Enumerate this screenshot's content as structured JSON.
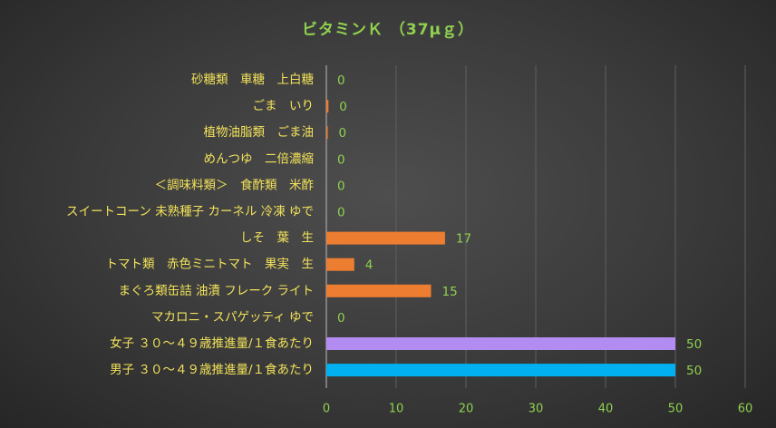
{
  "chart_data": {
    "type": "bar",
    "orientation": "horizontal",
    "title": "ビタミンＫ （37μｇ）",
    "xlim": [
      0,
      60
    ],
    "x_ticks": [
      "0",
      "10",
      "20",
      "30",
      "40",
      "50",
      "60"
    ],
    "grid": "vertical",
    "categories": [
      "砂糖類　車糖　上白糖",
      "ごま　いり",
      "植物油脂類　ごま油",
      "めんつゆ　二倍濃縮",
      "＜調味料類＞　食酢類　米酢",
      "スイートコーン 未熟種子 カーネル 冷凍 ゆで",
      "しそ　葉　生",
      "トマト類　赤色ミニトマト　果実　生",
      "まぐろ類缶詰 油漬 フレーク ライト",
      "マカロニ・スパゲッティ ゆで",
      "女子 ３０～４９歳推進量/１食あたり",
      "男子 ３０～４９歳推進量/１食あたり"
    ],
    "values": [
      0,
      0.3,
      0.2,
      0,
      0,
      0,
      17,
      4,
      15,
      0,
      50,
      50
    ],
    "data_labels": [
      "0",
      "0",
      "0",
      "0",
      "0",
      "0",
      "17",
      "4",
      "15",
      "0",
      "50",
      "50"
    ],
    "bar_colors": [
      "#ed7d31",
      "#ed7d31",
      "#ed7d31",
      "#ed7d31",
      "#ed7d31",
      "#ed7d31",
      "#ed7d31",
      "#ed7d31",
      "#ed7d31",
      "#ed7d31",
      "#b28cf0",
      "#00b0f0"
    ],
    "colors": {
      "category_label": "#f2e25a",
      "tick_label": "#8fd14f",
      "data_label": "#8fd14f",
      "title": "#8fd14f",
      "grid": "#5f5f5f",
      "axis": "#a8a8a8"
    }
  }
}
